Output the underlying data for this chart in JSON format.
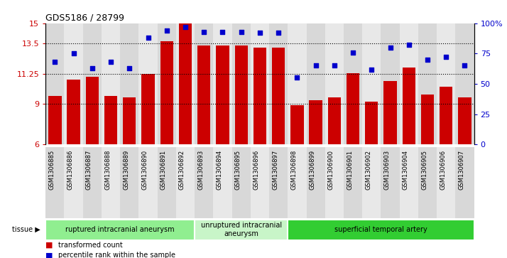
{
  "title": "GDS5186 / 28799",
  "samples": [
    "GSM1306885",
    "GSM1306886",
    "GSM1306887",
    "GSM1306888",
    "GSM1306889",
    "GSM1306890",
    "GSM1306891",
    "GSM1306892",
    "GSM1306893",
    "GSM1306894",
    "GSM1306895",
    "GSM1306896",
    "GSM1306897",
    "GSM1306898",
    "GSM1306899",
    "GSM1306900",
    "GSM1306901",
    "GSM1306902",
    "GSM1306903",
    "GSM1306904",
    "GSM1306905",
    "GSM1306906",
    "GSM1306907"
  ],
  "bar_values": [
    9.6,
    10.8,
    11.0,
    9.6,
    9.5,
    11.25,
    13.65,
    15.8,
    13.35,
    13.35,
    13.35,
    13.2,
    13.2,
    8.9,
    9.3,
    9.5,
    11.3,
    9.2,
    10.7,
    11.7,
    9.7,
    10.3,
    9.5
  ],
  "percentile_values": [
    68,
    75,
    63,
    68,
    63,
    88,
    94,
    97,
    93,
    93,
    93,
    92,
    92,
    55,
    65,
    65,
    76,
    62,
    80,
    82,
    70,
    72,
    65
  ],
  "tissue_groups": [
    {
      "label": "ruptured intracranial aneurysm",
      "start": 0,
      "end": 8,
      "color": "#90EE90"
    },
    {
      "label": "unruptured intracranial\naneurysm",
      "start": 8,
      "end": 13,
      "color": "#c8f5c8"
    },
    {
      "label": "superficial temporal artery",
      "start": 13,
      "end": 23,
      "color": "#32CD32"
    }
  ],
  "ylim_left": [
    6,
    15
  ],
  "ylim_right": [
    0,
    100
  ],
  "yticks_left": [
    6,
    9,
    11.25,
    13.5,
    15
  ],
  "ytick_labels_left": [
    "6",
    "9",
    "11.25",
    "13.5",
    "15"
  ],
  "yticks_right": [
    0,
    25,
    50,
    75,
    100
  ],
  "ytick_labels_right": [
    "0",
    "25",
    "50",
    "75",
    "100%"
  ],
  "hlines": [
    9,
    11.25,
    13.5
  ],
  "bar_color": "#CC0000",
  "dot_color": "#0000CC",
  "col_bg_even": "#D8D8D8",
  "col_bg_odd": "#E8E8E8",
  "legend_bar_label": "transformed count",
  "legend_dot_label": "percentile rank within the sample",
  "tissue_label": "tissue"
}
